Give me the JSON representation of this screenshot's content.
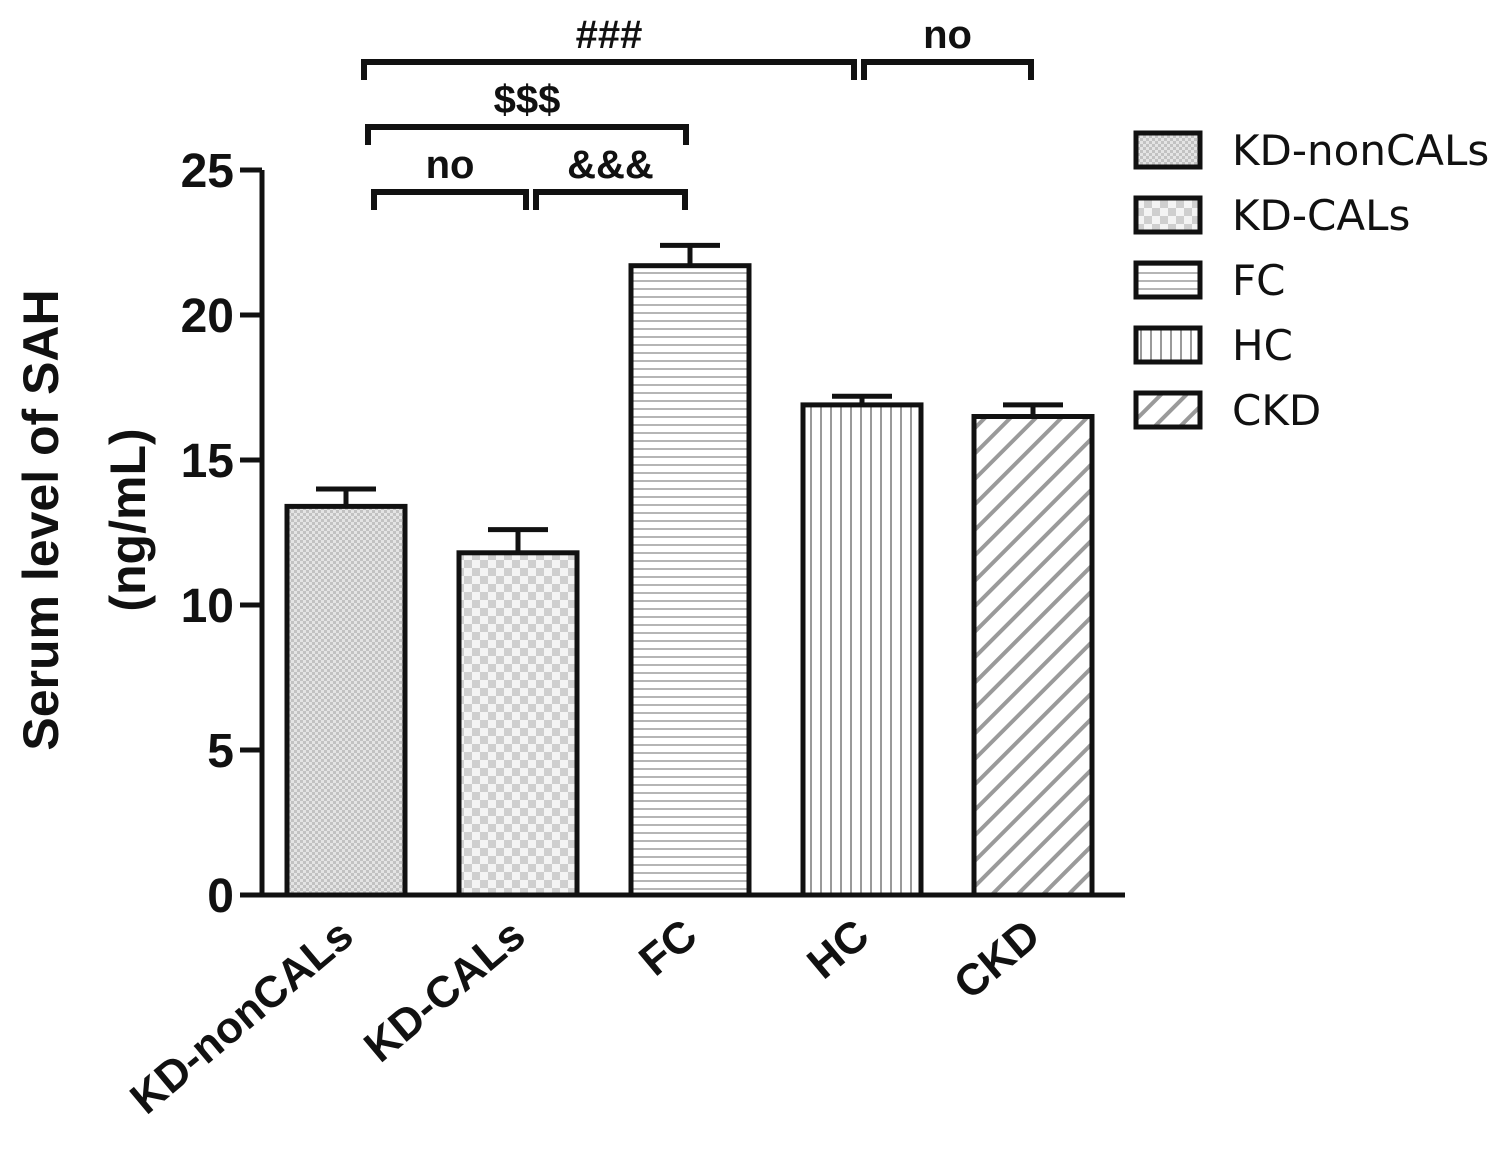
{
  "chart_data": {
    "type": "bar",
    "categories": [
      "KD-nonCALs",
      "KD-CALs",
      "FC",
      "HC",
      "CKD"
    ],
    "values": [
      13.4,
      11.8,
      21.7,
      16.9,
      16.5
    ],
    "errors": [
      0.6,
      0.8,
      0.7,
      0.3,
      0.4
    ],
    "patterns": [
      "dots",
      "checker",
      "horizontal",
      "vertical",
      "diagonal"
    ],
    "ylabel_line1": "Serum level of SAH",
    "ylabel_line2": "(ng/mL)",
    "ylim": [
      0,
      25
    ],
    "yticks": [
      0,
      5,
      10,
      15,
      20,
      25
    ],
    "ytick_labels": [
      "0",
      "5",
      "10",
      "15",
      "20",
      "25"
    ],
    "legend": {
      "placement": "right",
      "entries": [
        "KD-nonCALs",
        "KD-CALs",
        "FC",
        "HC",
        "CKD"
      ]
    },
    "significance": [
      {
        "from": 0,
        "to": 3,
        "label": "###",
        "level": 3
      },
      {
        "from": 3,
        "to": 4,
        "label": "no",
        "level": 3
      },
      {
        "from": 0,
        "to": 2,
        "label": "$$$",
        "level": 2
      },
      {
        "from": 0,
        "to": 1,
        "label": "no",
        "level": 1
      },
      {
        "from": 1,
        "to": 2,
        "label": "&&&",
        "level": 1
      }
    ],
    "grid": false
  }
}
